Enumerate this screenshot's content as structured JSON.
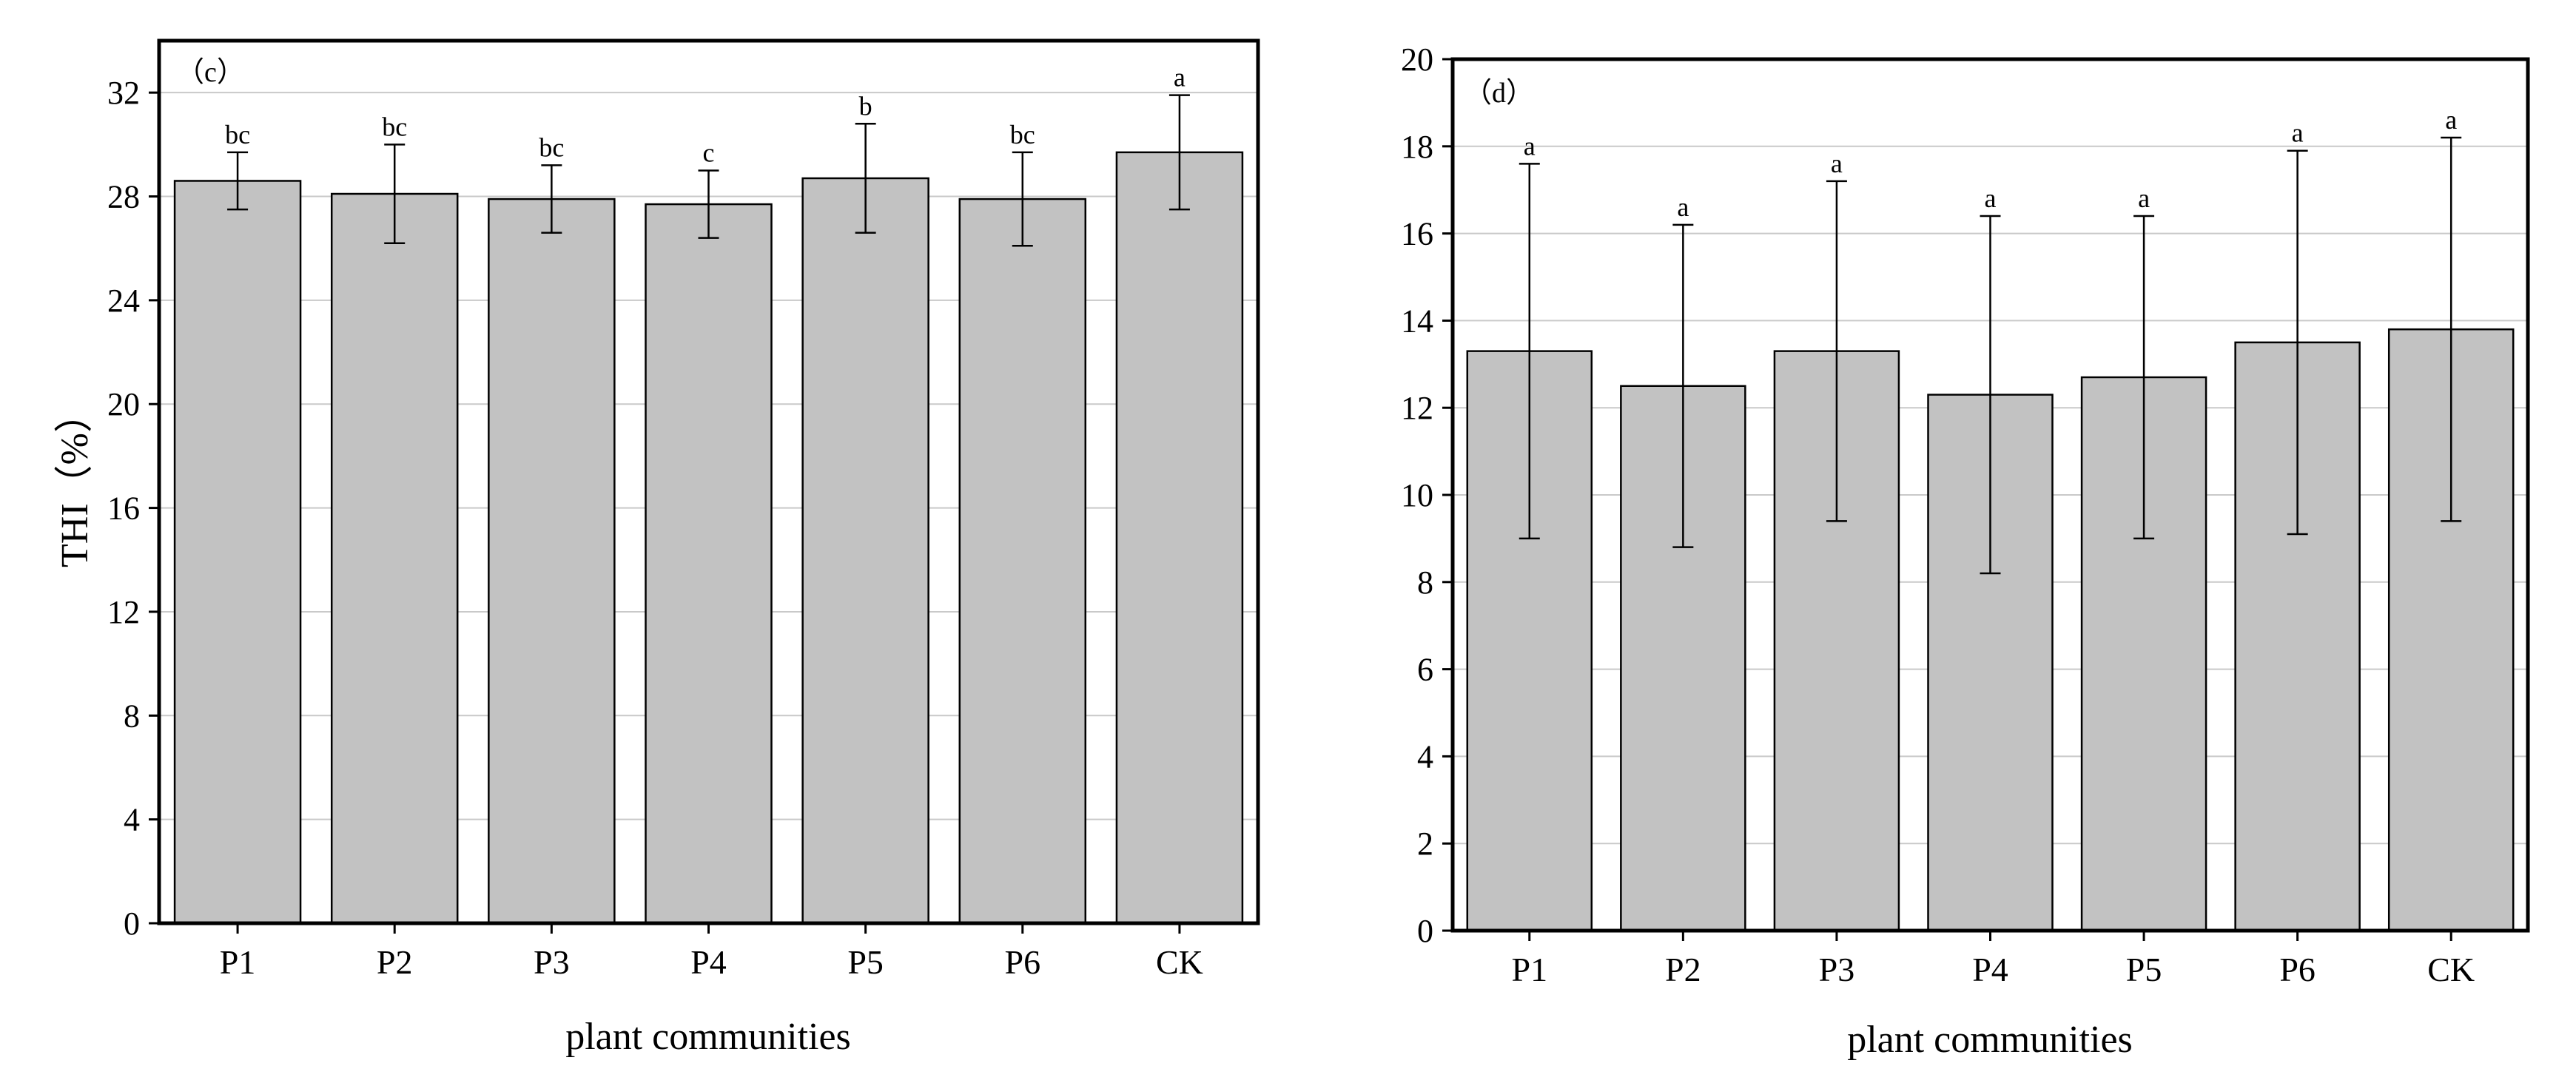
{
  "chart_data": [
    {
      "type": "bar",
      "panel_label": "（c）",
      "categories": [
        "P1",
        "P2",
        "P3",
        "P4",
        "P5",
        "P6",
        "CK"
      ],
      "values": [
        28.6,
        28.1,
        27.9,
        27.7,
        28.7,
        27.9,
        29.7
      ],
      "error": [
        1.1,
        1.9,
        1.3,
        1.3,
        2.1,
        1.8,
        2.2
      ],
      "significance": [
        "bc",
        "bc",
        "bc",
        "c",
        "b",
        "bc",
        "a"
      ],
      "ylim": [
        0,
        34
      ],
      "yticks": [
        "0",
        "4",
        "8",
        "12",
        "16",
        "20",
        "24",
        "28",
        "32"
      ],
      "ylabel": "THI（%）",
      "xlabel": "plant communities",
      "grid": true
    },
    {
      "type": "bar",
      "panel_label": "（d）",
      "categories": [
        "P1",
        "P2",
        "P3",
        "P4",
        "P5",
        "P6",
        "CK"
      ],
      "values": [
        13.3,
        12.5,
        13.3,
        12.3,
        12.7,
        13.5,
        13.8
      ],
      "error": [
        4.3,
        3.7,
        3.9,
        4.1,
        3.7,
        4.4,
        4.4
      ],
      "significance": [
        "a",
        "a",
        "a",
        "a",
        "a",
        "a",
        "a"
      ],
      "ylim": [
        0,
        20
      ],
      "yticks": [
        "0",
        "2",
        "4",
        "6",
        "8",
        "10",
        "12",
        "14",
        "16",
        "18",
        "20"
      ],
      "ylabel": "",
      "xlabel": "plant communities",
      "grid": true
    }
  ]
}
